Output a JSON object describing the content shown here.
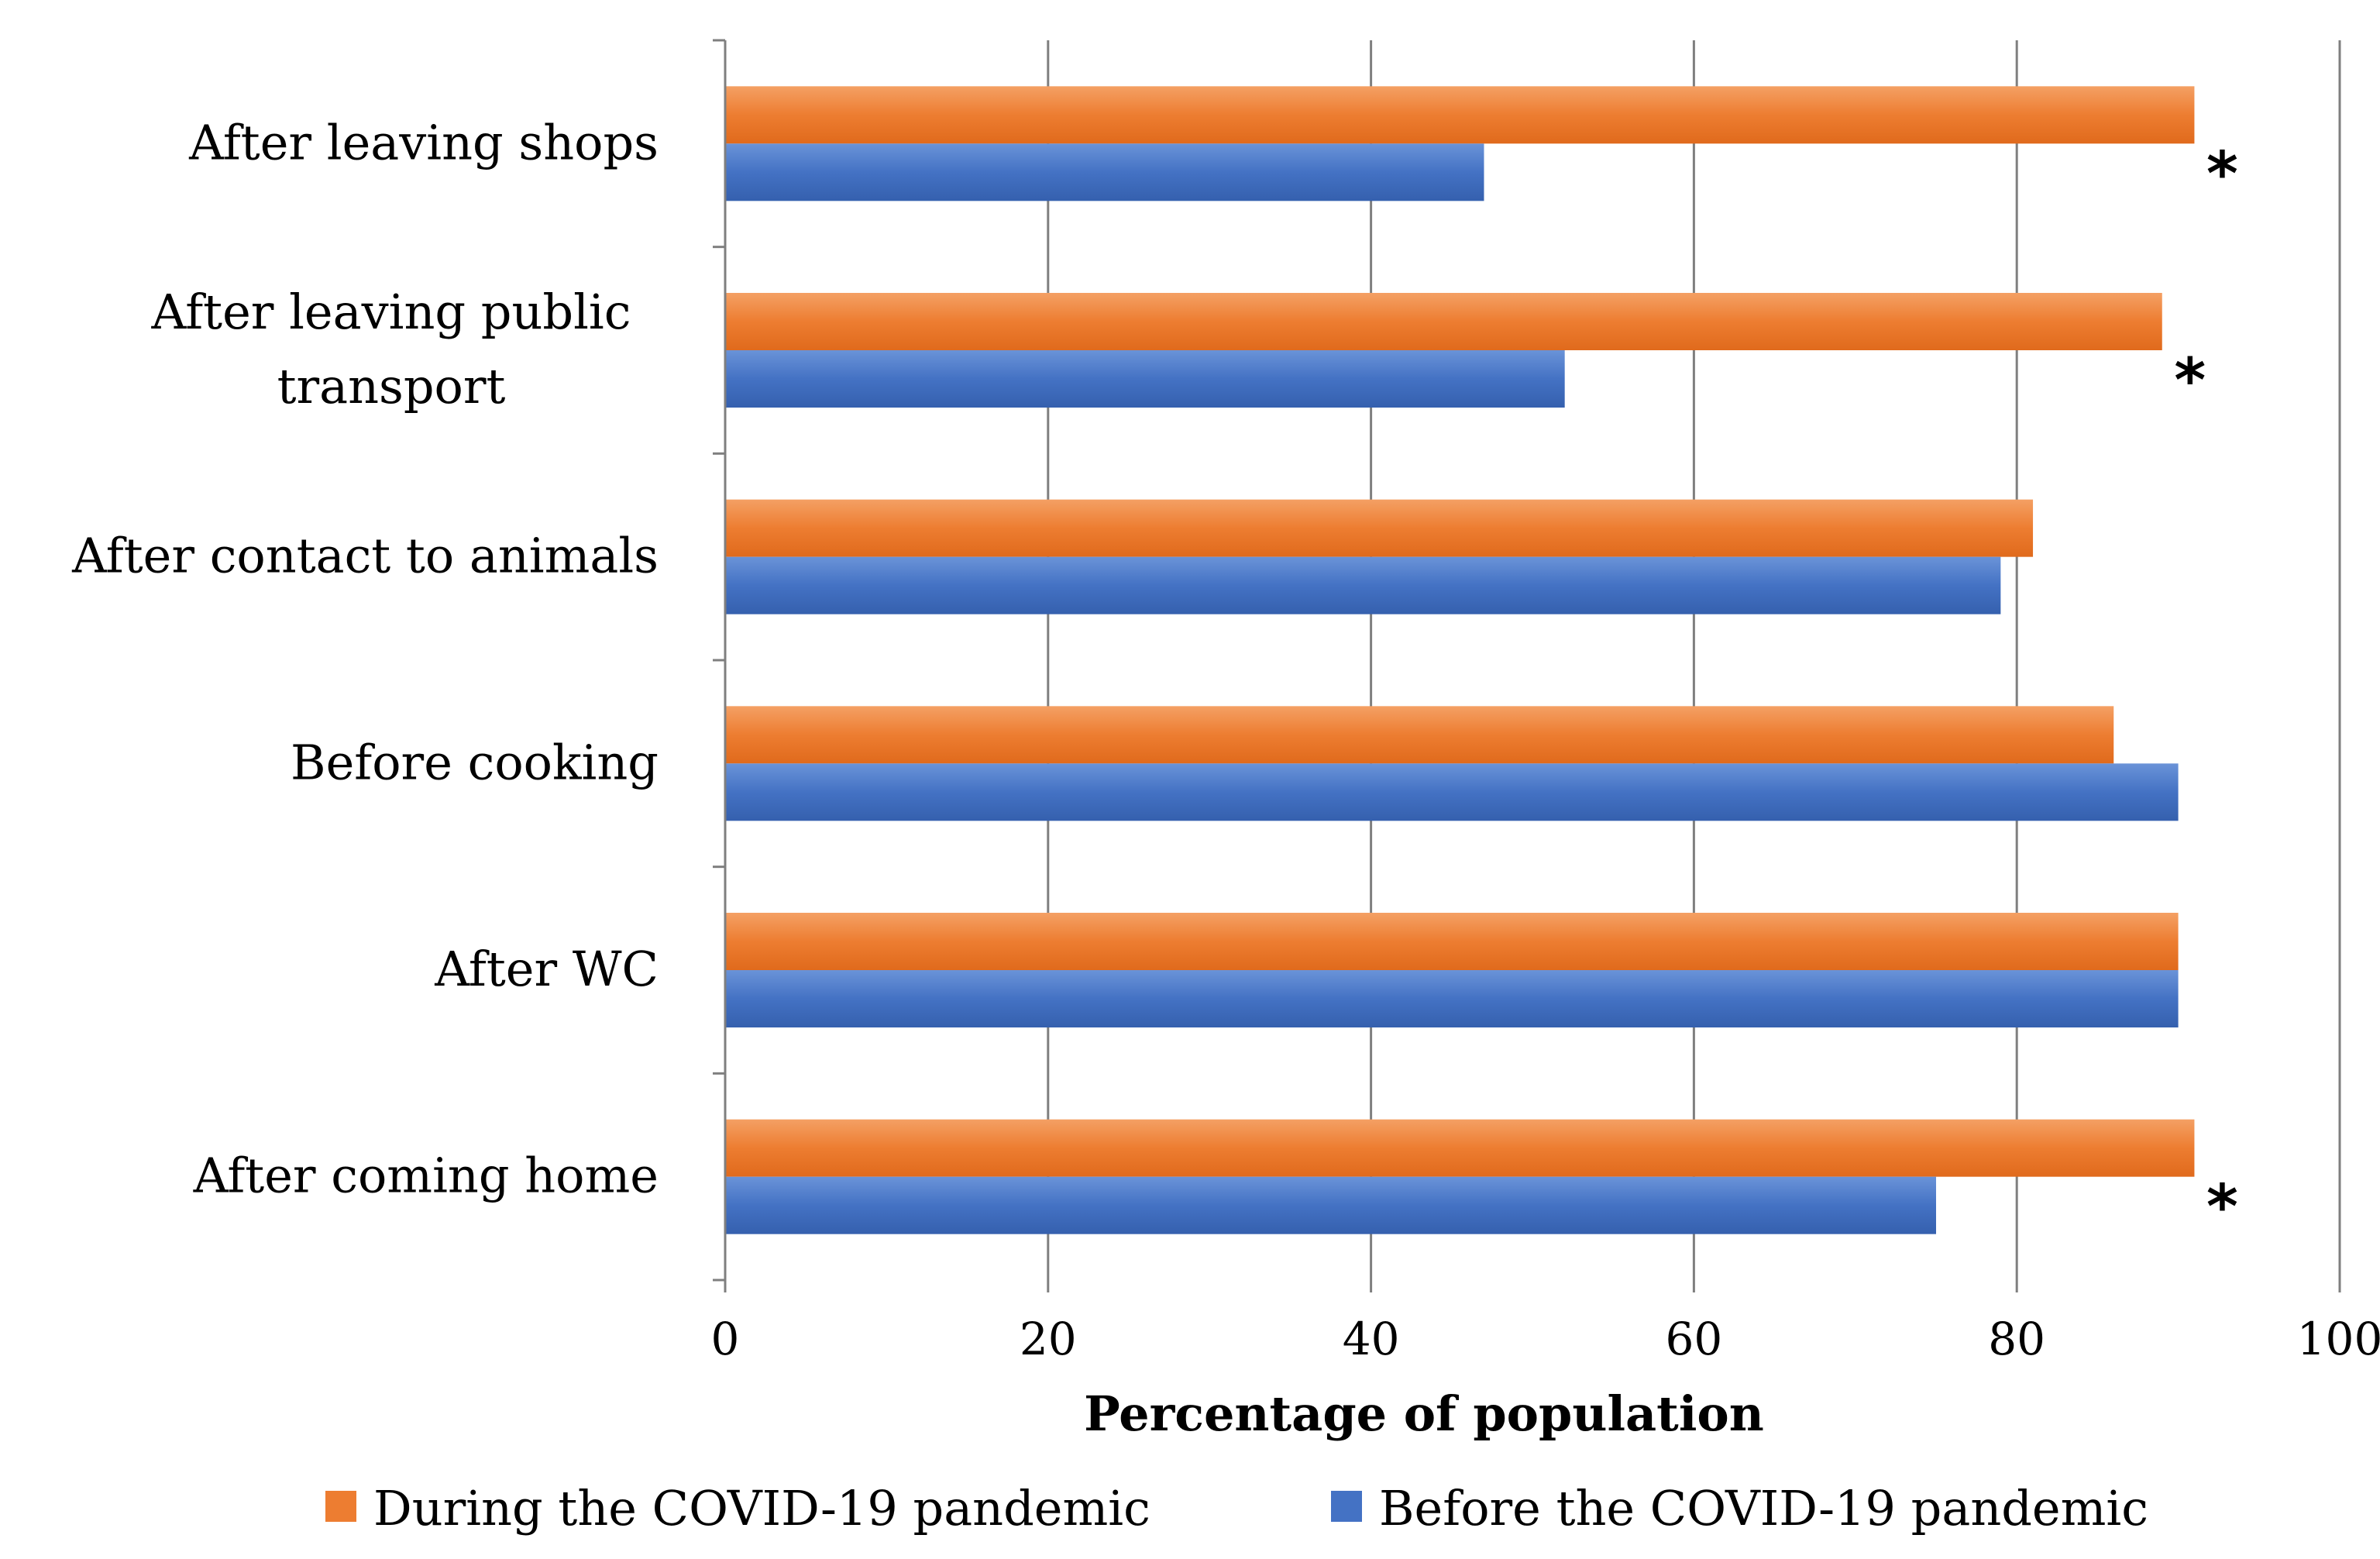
{
  "chart_data": {
    "type": "bar",
    "orientation": "horizontal",
    "title": "",
    "xlabel": "Percentage of population",
    "ylabel": "",
    "xlim": [
      0,
      100
    ],
    "x_ticks": [
      "0",
      "20",
      "40",
      "60",
      "80",
      "100"
    ],
    "grid": true,
    "categories": [
      [
        "After leaving shops"
      ],
      [
        "After leaving public",
        "transport"
      ],
      [
        "After contact to animals"
      ],
      [
        "Before cooking"
      ],
      [
        "After WC"
      ],
      [
        "After coming home"
      ]
    ],
    "series": [
      {
        "name": "During the COVID-19 pandemic",
        "color": "#ED7D31",
        "values": [
          91,
          89,
          81,
          86,
          90,
          91
        ]
      },
      {
        "name": "Before the COVID-19 pandemic",
        "color": "#4472C4",
        "values": [
          47,
          52,
          79,
          90,
          90,
          75
        ]
      }
    ],
    "significance": {
      "marker": "*",
      "flags": [
        true,
        true,
        false,
        false,
        false,
        true
      ]
    },
    "legend": {
      "position": "bottom"
    }
  }
}
